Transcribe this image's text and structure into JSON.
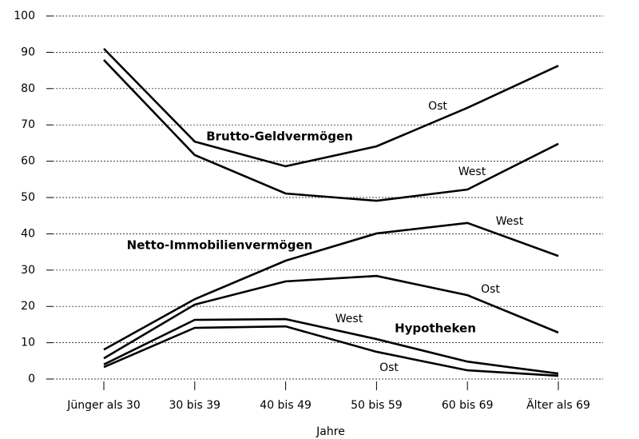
{
  "chart_data": {
    "type": "line",
    "x_label": "Jahre",
    "categories": [
      "Jünger als 30",
      "30 bis 39",
      "40 bis 49",
      "50 bis 59",
      "60 bis 69",
      "Älter als 69"
    ],
    "ylim": [
      0,
      100
    ],
    "yticks": [
      0,
      10,
      20,
      30,
      40,
      50,
      60,
      70,
      80,
      90,
      100
    ],
    "grid": true,
    "color": "#000000",
    "groups": [
      {
        "label": "Brutto-Geldvermögen",
        "series": [
          {
            "name": "Ost",
            "values": [
              91,
              65.4,
              58.6,
              64.1,
              74.7,
              86.3
            ]
          },
          {
            "name": "West",
            "values": [
              87.9,
              61.7,
              51.1,
              49.1,
              52.2,
              64.8
            ]
          }
        ]
      },
      {
        "label": "Netto-Immobilienvermögen",
        "series": [
          {
            "name": "West",
            "values": [
              8.1,
              22,
              32.6,
              40.1,
              43,
              33.9
            ]
          },
          {
            "name": "Ost",
            "values": [
              5.7,
              20.5,
              26.9,
              28.4,
              23.1,
              12.8
            ]
          }
        ]
      },
      {
        "label": "Hypotheken",
        "series": [
          {
            "name": "West",
            "values": [
              4,
              16.3,
              16.5,
              11,
              4.8,
              1.5
            ]
          },
          {
            "name": "Ost",
            "values": [
              3.3,
              14.1,
              14.5,
              7.5,
              2.4,
              0.9
            ]
          }
        ]
      }
    ]
  }
}
